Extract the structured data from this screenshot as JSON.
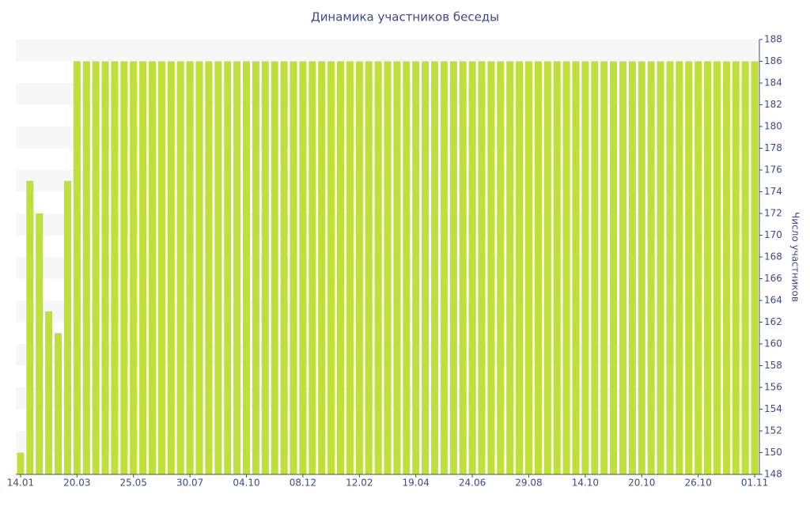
{
  "chart_data": {
    "type": "bar",
    "title": "Динамика участников беседы",
    "y_label": "Число участников",
    "categories": [
      "14.01",
      null,
      null,
      null,
      null,
      null,
      "20.03",
      null,
      null,
      null,
      null,
      null,
      "25.05",
      null,
      null,
      null,
      null,
      null,
      "30.07",
      null,
      null,
      null,
      null,
      null,
      "04.10",
      null,
      null,
      null,
      null,
      null,
      "08.12",
      null,
      null,
      null,
      null,
      null,
      "12.02",
      null,
      null,
      null,
      null,
      null,
      "19.04",
      null,
      null,
      null,
      null,
      null,
      "24.06",
      null,
      null,
      null,
      null,
      null,
      "29.08",
      null,
      null,
      null,
      null,
      null,
      "14.10",
      null,
      null,
      null,
      null,
      null,
      "20.10",
      null,
      null,
      null,
      null,
      null,
      "26.10",
      null,
      null,
      null,
      null,
      null,
      "01.11"
    ],
    "values": [
      150,
      175,
      172,
      163,
      161,
      175,
      186,
      186,
      186,
      186,
      186,
      186,
      186,
      186,
      186,
      186,
      186,
      186,
      186,
      186,
      186,
      186,
      186,
      186,
      186,
      186,
      186,
      186,
      186,
      186,
      186,
      186,
      186,
      186,
      186,
      186,
      186,
      186,
      186,
      186,
      186,
      186,
      186,
      186,
      186,
      186,
      186,
      186,
      186,
      186,
      186,
      186,
      186,
      186,
      186,
      186,
      186,
      186,
      186,
      186,
      186,
      186,
      186,
      186,
      186,
      186,
      186,
      186,
      186,
      186,
      186,
      186,
      186,
      186,
      186,
      186,
      186,
      186,
      186
    ],
    "color": "#bfe03a",
    "ylim": [
      148,
      188
    ],
    "yticks": [
      148,
      150,
      152,
      154,
      156,
      158,
      160,
      162,
      164,
      166,
      168,
      170,
      172,
      174,
      176,
      178,
      180,
      182,
      184,
      186,
      188
    ],
    "y_axis_side": "right",
    "grid": true
  }
}
